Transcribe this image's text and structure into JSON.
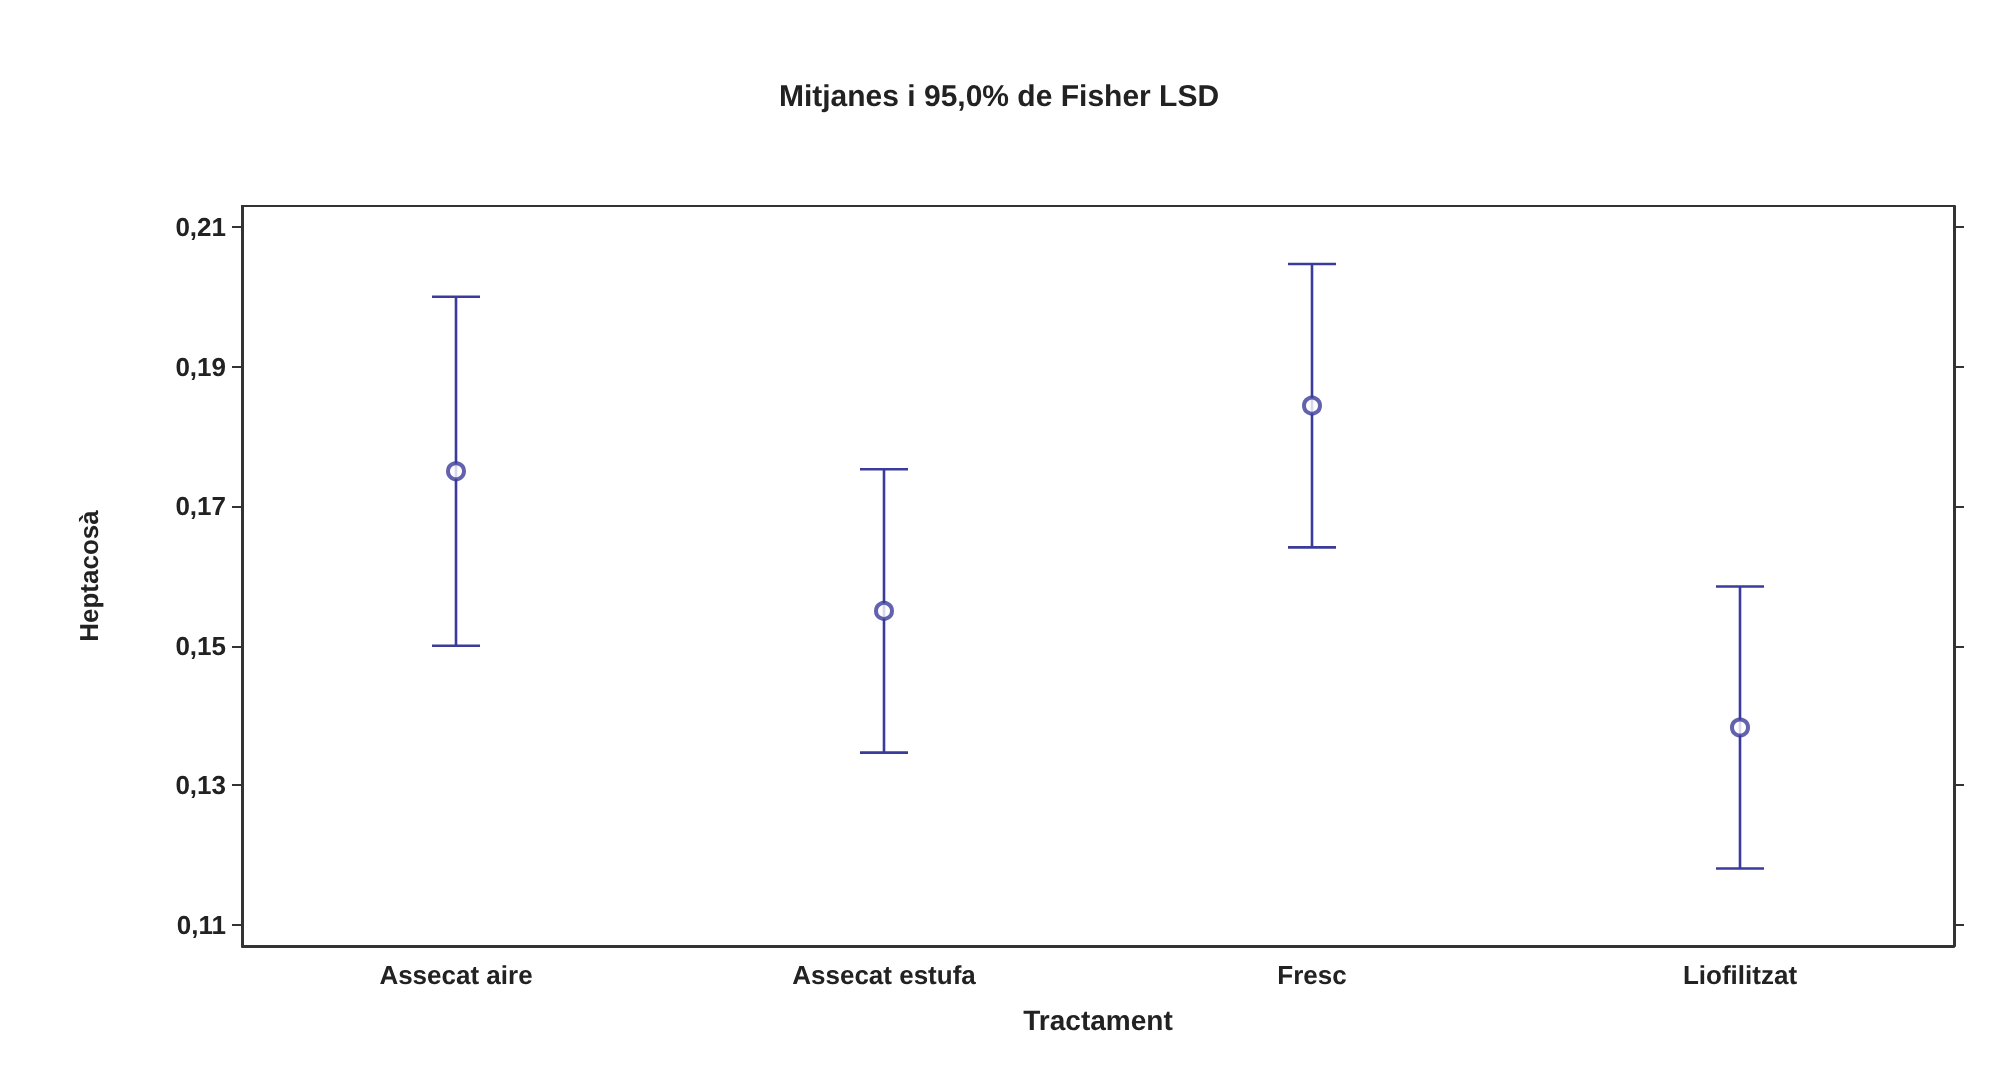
{
  "chart_data": {
    "type": "scatter",
    "title": "Mitjanes i 95,0% de Fisher LSD",
    "xlabel": "Tractament",
    "ylabel": "Heptacosà",
    "categories": [
      "Assecat aire",
      "Assecat estufa",
      "Fresc",
      "Liofilitzat"
    ],
    "series": [
      {
        "color": "#3b3b9b",
        "values": [
          0.175,
          0.155,
          0.1844,
          0.1383
        ],
        "errors": [
          0.025,
          0.0203,
          0.0203,
          0.0202
        ]
      }
    ],
    "marker": "circle",
    "grid": false,
    "ylim": [
      0.107,
      0.213
    ],
    "yticks": [
      {
        "value": 0.11,
        "label": "0,11"
      },
      {
        "value": 0.13,
        "label": "0,13"
      },
      {
        "value": 0.15,
        "label": "0,15"
      },
      {
        "value": 0.17,
        "label": "0,17"
      },
      {
        "value": 0.19,
        "label": "0,19"
      },
      {
        "value": 0.21,
        "label": "0,21"
      }
    ]
  }
}
